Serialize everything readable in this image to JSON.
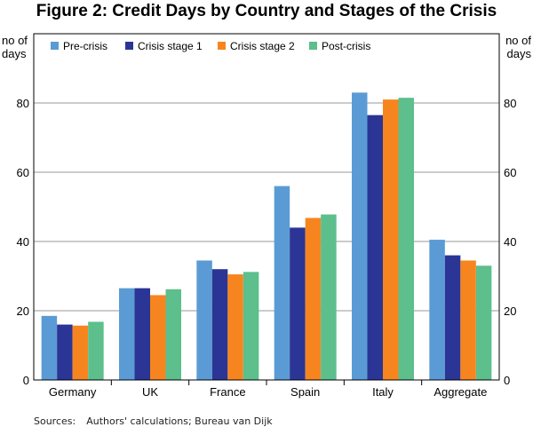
{
  "chart_data": {
    "type": "bar",
    "title": "Figure 2: Credit Days by Country and Stages of the Crisis",
    "ylabel_left": [
      "no of",
      "days"
    ],
    "ylabel_right": [
      "no of",
      "days"
    ],
    "ylim": [
      0,
      100
    ],
    "yticks": [
      0,
      20,
      40,
      60,
      80
    ],
    "grid": true,
    "legend_position": "top",
    "categories": [
      "Germany",
      "UK",
      "France",
      "Spain",
      "Italy",
      "Aggregate"
    ],
    "series": [
      {
        "name": "Pre-crisis",
        "color": "#5b9bd5",
        "values": [
          18.5,
          26.5,
          34.5,
          56,
          83,
          40.5
        ]
      },
      {
        "name": "Crisis stage 1",
        "color": "#2b3595",
        "values": [
          16,
          26.5,
          32,
          44,
          76.5,
          36
        ]
      },
      {
        "name": "Crisis stage 2",
        "color": "#f7851f",
        "values": [
          15.7,
          24.5,
          30.5,
          46.8,
          81,
          34.5
        ]
      },
      {
        "name": "Post-crisis",
        "color": "#5cbf8c",
        "values": [
          16.8,
          26.2,
          31.2,
          47.8,
          81.5,
          33
        ]
      }
    ]
  },
  "sources": {
    "label": "Sources:",
    "text": "Authors' calculations; Bureau van Dijk"
  }
}
